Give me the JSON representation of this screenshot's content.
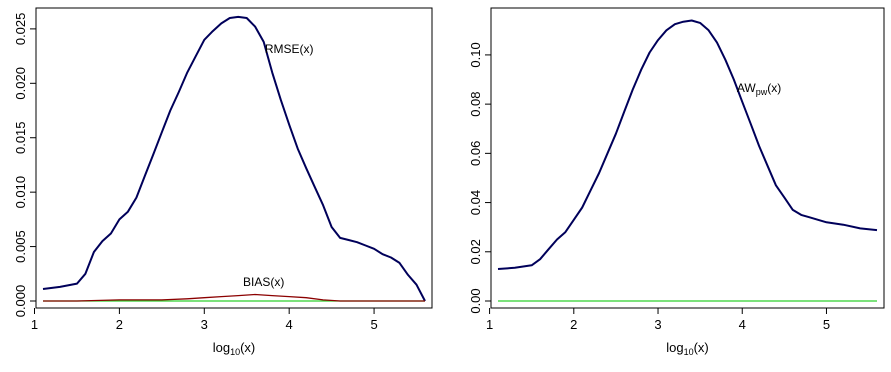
{
  "colors": {
    "series_main": "#00005a",
    "bias_line": "#8b0000",
    "zero_line": "#2fd12f",
    "axis": "#000000"
  },
  "chart_data": [
    {
      "type": "line",
      "xlabel_base": "log",
      "xlabel_sub": "10",
      "xlabel_arg": "(x)",
      "xlim": [
        1.1,
        5.6
      ],
      "ylim": [
        0,
        0.026
      ],
      "xticks": [
        "1",
        "2",
        "3",
        "4",
        "5"
      ],
      "xtick_values": [
        1,
        2,
        3,
        4,
        5
      ],
      "yticks": [
        "0.000",
        "0.005",
        "0.010",
        "0.015",
        "0.020",
        "0.025"
      ],
      "ytick_values": [
        0,
        0.005,
        0.01,
        0.015,
        0.02,
        0.025
      ],
      "series": [
        {
          "name": "RMSE(x)",
          "color_key": "series_main",
          "x": [
            1.1,
            1.3,
            1.5,
            1.6,
            1.7,
            1.8,
            1.9,
            2.0,
            2.1,
            2.2,
            2.3,
            2.4,
            2.5,
            2.6,
            2.7,
            2.8,
            2.9,
            3.0,
            3.1,
            3.2,
            3.3,
            3.4,
            3.5,
            3.6,
            3.7,
            3.8,
            3.9,
            4.0,
            4.1,
            4.2,
            4.3,
            4.4,
            4.5,
            4.6,
            4.7,
            4.8,
            4.9,
            5.0,
            5.1,
            5.2,
            5.3,
            5.4,
            5.5,
            5.6
          ],
          "y": [
            0.0011,
            0.0013,
            0.0016,
            0.0025,
            0.0045,
            0.0055,
            0.0062,
            0.0075,
            0.0082,
            0.0095,
            0.0115,
            0.0135,
            0.0155,
            0.0175,
            0.0192,
            0.021,
            0.0225,
            0.024,
            0.0248,
            0.0255,
            0.026,
            0.0261,
            0.026,
            0.0252,
            0.0238,
            0.021,
            0.0185,
            0.0162,
            0.014,
            0.0122,
            0.0105,
            0.0088,
            0.0068,
            0.0058,
            0.0056,
            0.0054,
            0.0051,
            0.0048,
            0.0043,
            0.004,
            0.0035,
            0.0024,
            0.0015,
            0.0
          ]
        },
        {
          "name": "BIAS(x)",
          "color_key": "bias_line",
          "x": [
            1.1,
            1.5,
            2.0,
            2.5,
            2.8,
            3.0,
            3.2,
            3.4,
            3.6,
            3.8,
            4.0,
            4.2,
            4.4,
            4.6,
            5.0,
            5.6
          ],
          "y": [
            0.0,
            0.0,
            0.0001,
            0.0001,
            0.0002,
            0.0003,
            0.0004,
            0.0005,
            0.0006,
            0.0005,
            0.0004,
            0.0003,
            0.0001,
            0.0,
            0.0,
            0.0
          ]
        },
        {
          "name": "",
          "color_key": "zero_line",
          "x": [
            1.1,
            5.6
          ],
          "y": [
            0.0,
            0.0
          ]
        }
      ],
      "annotations": [
        {
          "text": "RMSE(x)",
          "x": 4.0,
          "y": 0.0228
        },
        {
          "text": "BIAS(x)",
          "x": 3.7,
          "y": 0.0014
        }
      ]
    },
    {
      "type": "line",
      "xlabel_base": "log",
      "xlabel_sub": "10",
      "xlabel_arg": "(x)",
      "xlim": [
        1.1,
        5.6
      ],
      "ylim": [
        0,
        0.115
      ],
      "xticks": [
        "1",
        "2",
        "3",
        "4",
        "5"
      ],
      "xtick_values": [
        1,
        2,
        3,
        4,
        5
      ],
      "yticks": [
        "0.00",
        "0.02",
        "0.04",
        "0.06",
        "0.08",
        "0.10"
      ],
      "ytick_values": [
        0,
        0.02,
        0.04,
        0.06,
        0.08,
        0.1
      ],
      "series": [
        {
          "name": "AWpw(x)",
          "color_key": "series_main",
          "x": [
            1.1,
            1.3,
            1.5,
            1.6,
            1.7,
            1.8,
            1.9,
            2.0,
            2.1,
            2.2,
            2.3,
            2.4,
            2.5,
            2.6,
            2.7,
            2.8,
            2.9,
            3.0,
            3.1,
            3.2,
            3.3,
            3.4,
            3.5,
            3.6,
            3.7,
            3.8,
            3.9,
            4.0,
            4.1,
            4.2,
            4.3,
            4.4,
            4.5,
            4.6,
            4.7,
            4.8,
            4.9,
            5.0,
            5.2,
            5.4,
            5.6
          ],
          "y": [
            0.013,
            0.0135,
            0.0145,
            0.017,
            0.021,
            0.025,
            0.028,
            0.033,
            0.038,
            0.045,
            0.052,
            0.06,
            0.068,
            0.077,
            0.086,
            0.094,
            0.101,
            0.106,
            0.11,
            0.1125,
            0.1135,
            0.114,
            0.113,
            0.11,
            0.105,
            0.098,
            0.09,
            0.081,
            0.072,
            0.063,
            0.055,
            0.047,
            0.042,
            0.037,
            0.035,
            0.034,
            0.033,
            0.032,
            0.031,
            0.0295,
            0.0288
          ]
        },
        {
          "name": "",
          "color_key": "zero_line",
          "x": [
            1.1,
            5.6
          ],
          "y": [
            0.0,
            0.0
          ]
        }
      ],
      "annotations": [
        {
          "text_base": "AW",
          "text_sub": "pw",
          "text_arg": "(x)",
          "x": 4.2,
          "y": 0.085
        }
      ]
    }
  ]
}
